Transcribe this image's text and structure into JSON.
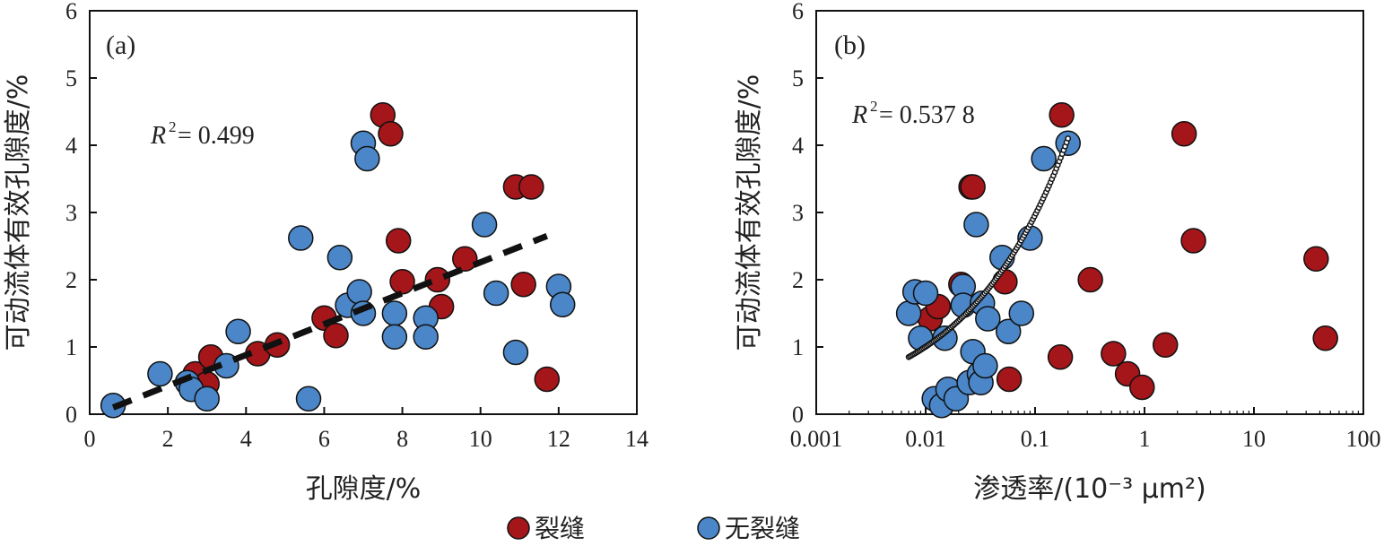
{
  "chart_data": [
    {
      "type": "scatter",
      "panel_label": "(a)",
      "xlabel": "孔隙度/%",
      "ylabel": "可动流体有效孔隙度/%",
      "xlim": [
        0,
        14
      ],
      "ylim": [
        0,
        6
      ],
      "x_ticks": [
        0,
        2,
        4,
        6,
        8,
        10,
        12,
        14
      ],
      "y_ticks": [
        0,
        1,
        2,
        3,
        4,
        5,
        6
      ],
      "x_scale": "linear",
      "annotation": {
        "r2_label": "R",
        "r2_exp": "2",
        "r2_value": " = 0.499"
      },
      "trendline": {
        "style": "dashed",
        "color": "#111111",
        "x": [
          0.6,
          11.7
        ],
        "y": [
          0.1,
          2.65
        ]
      },
      "series": [
        {
          "name": "裂缝",
          "color": "#a4161a",
          "points": [
            [
              2.7,
              0.6
            ],
            [
              3.0,
              0.45
            ],
            [
              3.1,
              0.85
            ],
            [
              4.3,
              0.9
            ],
            [
              4.8,
              1.03
            ],
            [
              6.0,
              1.43
            ],
            [
              6.3,
              1.17
            ],
            [
              7.5,
              4.45
            ],
            [
              7.7,
              4.17
            ],
            [
              7.9,
              2.58
            ],
            [
              8.0,
              1.97
            ],
            [
              8.9,
              2.0
            ],
            [
              9.0,
              1.6
            ],
            [
              9.6,
              2.31
            ],
            [
              10.9,
              3.38
            ],
            [
              11.1,
              1.93
            ],
            [
              11.3,
              3.38
            ],
            [
              11.7,
              0.52
            ]
          ]
        },
        {
          "name": "无裂缝",
          "color": "#4a86c8",
          "points": [
            [
              0.6,
              0.13
            ],
            [
              1.8,
              0.6
            ],
            [
              2.5,
              0.47
            ],
            [
              2.6,
              0.37
            ],
            [
              3.0,
              0.23
            ],
            [
              3.5,
              0.72
            ],
            [
              3.8,
              1.23
            ],
            [
              5.4,
              2.62
            ],
            [
              5.6,
              0.23
            ],
            [
              6.4,
              2.33
            ],
            [
              6.6,
              1.62
            ],
            [
              6.9,
              1.82
            ],
            [
              7.0,
              1.5
            ],
            [
              7.0,
              4.03
            ],
            [
              7.1,
              3.8
            ],
            [
              7.8,
              1.5
            ],
            [
              7.8,
              1.15
            ],
            [
              8.6,
              1.43
            ],
            [
              8.6,
              1.15
            ],
            [
              10.1,
              2.82
            ],
            [
              10.4,
              1.8
            ],
            [
              10.9,
              0.92
            ],
            [
              12.0,
              1.9
            ],
            [
              12.1,
              1.63
            ]
          ]
        }
      ]
    },
    {
      "type": "scatter",
      "panel_label": "(b)",
      "xlabel": "渗透率/(10⁻³ μm²)",
      "ylabel": "可动流体有效孔隙度/%",
      "xlim": [
        0.001,
        100
      ],
      "ylim": [
        0,
        6
      ],
      "x_ticks": [
        "0.001",
        "0.01",
        "0.1",
        "1",
        "10",
        "100"
      ],
      "y_ticks": [
        0,
        1,
        2,
        3,
        4,
        5,
        6
      ],
      "x_scale": "log",
      "annotation": {
        "r2_label": "R",
        "r2_exp": "2",
        "r2_value": " = 0.537 8"
      },
      "trendline": {
        "style": "dotted-circles",
        "color": "#111111",
        "x": [
          0.007,
          0.2
        ],
        "y": [
          0.85,
          4.1
        ]
      },
      "series": [
        {
          "name": "裂缝",
          "color": "#a4161a",
          "points": [
            [
              0.011,
              1.42
            ],
            [
              0.013,
              1.6
            ],
            [
              0.021,
              1.93
            ],
            [
              0.026,
              3.38
            ],
            [
              0.027,
              3.38
            ],
            [
              0.053,
              1.97
            ],
            [
              0.058,
              0.52
            ],
            [
              0.17,
              0.85
            ],
            [
              0.175,
              4.45
            ],
            [
              0.32,
              2.0
            ],
            [
              0.52,
              0.9
            ],
            [
              0.7,
              0.6
            ],
            [
              0.95,
              0.4
            ],
            [
              1.55,
              1.03
            ],
            [
              2.3,
              4.17
            ],
            [
              2.8,
              2.58
            ],
            [
              37,
              2.31
            ],
            [
              45,
              1.13
            ]
          ]
        },
        {
          "name": "无裂缝",
          "color": "#4a86c8",
          "points": [
            [
              0.007,
              1.5
            ],
            [
              0.008,
              1.82
            ],
            [
              0.009,
              1.13
            ],
            [
              0.01,
              1.8
            ],
            [
              0.012,
              0.23
            ],
            [
              0.014,
              0.13
            ],
            [
              0.015,
              1.13
            ],
            [
              0.016,
              0.37
            ],
            [
              0.019,
              0.23
            ],
            [
              0.022,
              1.9
            ],
            [
              0.022,
              1.62
            ],
            [
              0.025,
              0.47
            ],
            [
              0.027,
              0.93
            ],
            [
              0.029,
              2.82
            ],
            [
              0.031,
              0.6
            ],
            [
              0.032,
              0.47
            ],
            [
              0.033,
              1.65
            ],
            [
              0.035,
              0.72
            ],
            [
              0.037,
              1.42
            ],
            [
              0.05,
              2.33
            ],
            [
              0.057,
              1.23
            ],
            [
              0.075,
              1.5
            ],
            [
              0.09,
              2.62
            ],
            [
              0.12,
              3.8
            ],
            [
              0.2,
              4.03
            ]
          ]
        }
      ]
    }
  ],
  "legend": [
    {
      "label": "裂缝",
      "color": "#a4161a"
    },
    {
      "label": "无裂缝",
      "color": "#4a86c8"
    }
  ]
}
